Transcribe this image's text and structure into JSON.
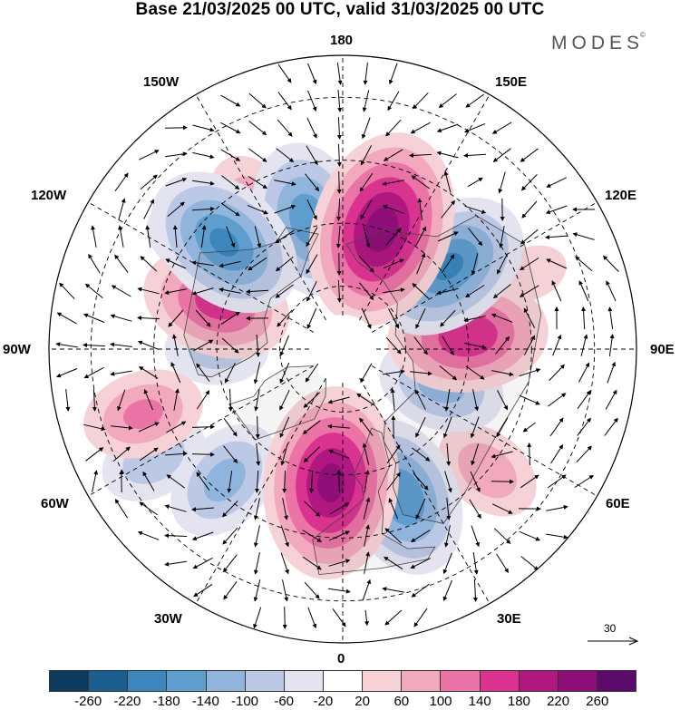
{
  "title": "Base 21/03/2025 00 UTC, valid 31/03/2025 00 UTC",
  "brand": "MODES",
  "brand_mark": "©",
  "longitude_labels": {
    "lon_180": "180",
    "lon_150E": "150E",
    "lon_120E": "120E",
    "lon_90E": "90E",
    "lon_60E": "60E",
    "lon_30E": "30E",
    "lon_0": "0",
    "lon_30W": "30W",
    "lon_60W": "60W",
    "lon_90W": "90W",
    "lon_120W": "120W",
    "lon_150W": "150W"
  },
  "wind_reference": {
    "label": "30"
  },
  "colorbar": {
    "colors": [
      "#0d3a5f",
      "#1a5f8f",
      "#3a86bd",
      "#5e9ecf",
      "#8fb5dc",
      "#bcc9e6",
      "#e4e4f1",
      "#ffffff",
      "#f6d2d6",
      "#f2a9bd",
      "#ea74a6",
      "#d9338f",
      "#b01780",
      "#8e0f78",
      "#5c0a6b"
    ],
    "tick_labels": [
      "-260",
      "-220",
      "-180",
      "-140",
      "-100",
      "-60",
      "-20",
      "20",
      "60",
      "100",
      "140",
      "180",
      "220",
      "260"
    ]
  },
  "anomaly_centers": [
    {
      "lat": 60,
      "lon": 162,
      "value": 250
    },
    {
      "lat": 58,
      "lon": -165,
      "value": -170
    },
    {
      "lat": 50,
      "lon": -148,
      "value": 90
    },
    {
      "lat": 52,
      "lon": -132,
      "value": -190
    },
    {
      "lat": 58,
      "lon": 128,
      "value": -190
    },
    {
      "lat": 60,
      "lon": 96,
      "value": 180
    },
    {
      "lat": 65,
      "lon": 70,
      "value": -120
    },
    {
      "lat": 45,
      "lon": 50,
      "value": 90
    },
    {
      "lat": 52,
      "lon": 22,
      "value": -180
    },
    {
      "lat": 58,
      "lon": -5,
      "value": 240
    },
    {
      "lat": 48,
      "lon": -42,
      "value": -120
    },
    {
      "lat": 38,
      "lon": -60,
      "value": -90
    },
    {
      "lat": 40,
      "lon": -72,
      "value": 110
    },
    {
      "lat": 58,
      "lon": -110,
      "value": 160
    },
    {
      "lat": 60,
      "lon": -90,
      "value": -80
    },
    {
      "lat": 42,
      "lon": 112,
      "value": 40
    },
    {
      "lat": 45,
      "lon": -125,
      "value": -60
    }
  ]
}
